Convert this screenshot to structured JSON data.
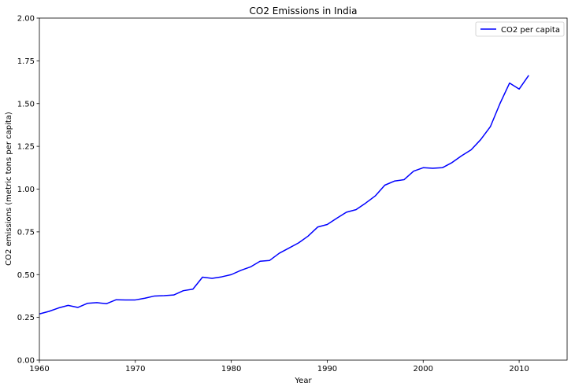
{
  "chart_data": {
    "type": "line",
    "title": "CO2 Emissions in India",
    "xlabel": "Year",
    "ylabel": "CO2 emissions (metric tons per capita)",
    "xlim": [
      1960,
      2015
    ],
    "ylim": [
      0,
      2.0
    ],
    "xticks": [
      "1960",
      "1970",
      "1980",
      "1990",
      "2000",
      "2010"
    ],
    "yticks": [
      "0.00",
      "0.25",
      "0.50",
      "0.75",
      "1.00",
      "1.25",
      "1.50",
      "1.75",
      "2.00"
    ],
    "grid": false,
    "legend": {
      "placement": "top-right"
    },
    "series": [
      {
        "name": "CO2 per capita",
        "color": "#0000ff",
        "x": [
          1960,
          1961,
          1962,
          1963,
          1964,
          1965,
          1966,
          1967,
          1968,
          1969,
          1970,
          1971,
          1972,
          1973,
          1974,
          1975,
          1976,
          1977,
          1978,
          1979,
          1980,
          1981,
          1982,
          1983,
          1984,
          1985,
          1986,
          1987,
          1988,
          1989,
          1990,
          1991,
          1992,
          1993,
          1994,
          1995,
          1996,
          1997,
          1998,
          1999,
          2000,
          2001,
          2002,
          2003,
          2004,
          2005,
          2006,
          2007,
          2008,
          2009,
          2010,
          2011
        ],
        "values": [
          0.27,
          0.285,
          0.305,
          0.32,
          0.308,
          0.332,
          0.336,
          0.33,
          0.353,
          0.352,
          0.352,
          0.362,
          0.375,
          0.377,
          0.381,
          0.406,
          0.415,
          0.485,
          0.478,
          0.487,
          0.5,
          0.525,
          0.545,
          0.578,
          0.583,
          0.625,
          0.655,
          0.685,
          0.725,
          0.778,
          0.793,
          0.83,
          0.865,
          0.88,
          0.918,
          0.96,
          1.023,
          1.047,
          1.055,
          1.105,
          1.125,
          1.122,
          1.125,
          1.155,
          1.195,
          1.23,
          1.29,
          1.365,
          1.5,
          1.62,
          1.585,
          1.665
        ]
      }
    ]
  }
}
